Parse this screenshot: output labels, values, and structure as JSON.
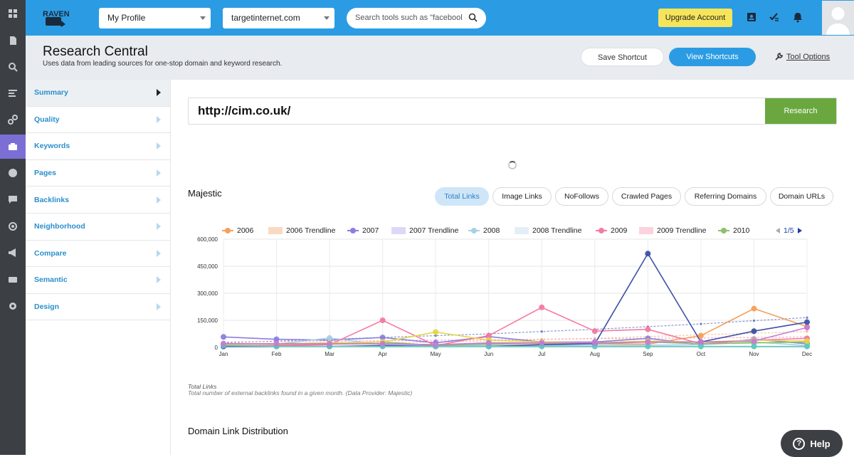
{
  "app": {
    "logo_text": "RAVEN"
  },
  "topbar": {
    "profile_select": "My Profile",
    "domain_select": "targetinternet.com",
    "search_placeholder": "Search tools such as \"facebook\"",
    "upgrade_label": "Upgrade Account"
  },
  "header": {
    "title": "Research Central",
    "subtitle": "Uses data from leading sources for one-stop domain and keyword research.",
    "save_shortcut": "Save Shortcut",
    "view_shortcuts": "View Shortcuts",
    "tool_options": "Tool Options"
  },
  "nav": {
    "items": [
      {
        "label": "Summary",
        "active": true
      },
      {
        "label": "Quality"
      },
      {
        "label": "Keywords"
      },
      {
        "label": "Pages"
      },
      {
        "label": "Backlinks"
      },
      {
        "label": "Neighborhood"
      },
      {
        "label": "Compare"
      },
      {
        "label": "Semantic"
      },
      {
        "label": "Design"
      }
    ]
  },
  "research": {
    "url": "http://cim.co.uk/",
    "button": "Research"
  },
  "majestic": {
    "title": "Majestic",
    "tabs": [
      {
        "label": "Total Links",
        "active": true
      },
      {
        "label": "Image Links"
      },
      {
        "label": "NoFollows"
      },
      {
        "label": "Crawled Pages"
      },
      {
        "label": "Referring Domains"
      },
      {
        "label": "Domain URLs"
      }
    ],
    "pager": "1/5",
    "caption_title": "Total Links",
    "caption_desc": "Total number of external backlinks found in a given month. (Data Provider: Majestic)"
  },
  "legend": [
    {
      "name": "2006",
      "type": "line",
      "color": "#f5a05a"
    },
    {
      "name": "2006 Trendline",
      "type": "box",
      "color": "#fbd9c0"
    },
    {
      "name": "2007",
      "type": "line",
      "color": "#8a7fe0"
    },
    {
      "name": "2007 Trendline",
      "type": "box",
      "color": "#dcd8f6"
    },
    {
      "name": "2008",
      "type": "line",
      "color": "#a9cfe9"
    },
    {
      "name": "2008 Trendline",
      "type": "box",
      "color": "#e3eff8"
    },
    {
      "name": "2009",
      "type": "line",
      "color": "#f57aa0"
    },
    {
      "name": "2009 Trendline",
      "type": "box",
      "color": "#fcd2de"
    },
    {
      "name": "2010",
      "type": "line",
      "color": "#8cc06a"
    }
  ],
  "chart_data": {
    "type": "line",
    "categories": [
      "Jan",
      "Feb",
      "Mar",
      "Apr",
      "May",
      "Jun",
      "Jul",
      "Aug",
      "Sep",
      "Oct",
      "Nov",
      "Dec"
    ],
    "ylim": [
      0,
      600000
    ],
    "yticks": [
      0,
      150000,
      300000,
      450000,
      600000
    ],
    "ytick_labels": [
      "0",
      "150,000",
      "300,000",
      "450,000",
      "600,000"
    ],
    "series": [
      {
        "name": "2006",
        "color": "#f5a05a",
        "values": [
          20000,
          15000,
          18000,
          20000,
          15000,
          18000,
          22000,
          20000,
          18000,
          65000,
          215000,
          115000
        ]
      },
      {
        "name": "2007",
        "color": "#8a7fe0",
        "values": [
          58000,
          45000,
          40000,
          55000,
          25000,
          60000,
          30000,
          30000,
          50000,
          15000,
          45000,
          20000
        ]
      },
      {
        "name": "2008",
        "color": "#a9cfe9",
        "values": [
          15000,
          18000,
          52000,
          15000,
          10000,
          12000,
          10000,
          10000,
          12000,
          15000,
          30000,
          10000
        ]
      },
      {
        "name": "2009",
        "color": "#f57aa0",
        "values": [
          10000,
          8000,
          15000,
          150000,
          10000,
          65000,
          222000,
          90000,
          100000,
          20000,
          40000,
          50000
        ]
      },
      {
        "name": "2010",
        "color": "#8cc06a",
        "values": [
          20000,
          20000,
          25000,
          30000,
          10000,
          20000,
          25000,
          20000,
          30000,
          20000,
          25000,
          30000
        ]
      },
      {
        "color": "#e5d645",
        "values": [
          15000,
          20000,
          25000,
          30000,
          85000,
          40000,
          30000,
          25000,
          35000,
          30000,
          40000,
          35000
        ]
      },
      {
        "color": "#3e51a8",
        "values": [
          5000,
          5000,
          5000,
          10000,
          5000,
          5000,
          15000,
          20000,
          520000,
          30000,
          90000,
          140000
        ]
      },
      {
        "color": "#5cc9c0",
        "values": [
          10000,
          5000,
          5000,
          5000,
          5000,
          5000,
          5000,
          5000,
          5000,
          5000,
          5000,
          5000
        ]
      },
      {
        "color": "#c77ad6",
        "values": [
          20000,
          20000,
          20000,
          20000,
          15000,
          25000,
          25000,
          25000,
          30000,
          30000,
          35000,
          110000
        ]
      }
    ],
    "trendlines": [
      {
        "color": "#6c7ec8",
        "values": [
          25000,
          35000,
          45000,
          55000,
          65000,
          75000,
          88000,
          100000,
          115000,
          130000,
          148000,
          165000
        ]
      },
      {
        "color": "#f5b98a",
        "values": [
          10000,
          15000,
          20000,
          25000,
          30000,
          35000,
          45000,
          50000,
          60000,
          70000,
          78000,
          88000
        ]
      },
      {
        "color": "#f2a0b8",
        "values": [
          30000,
          32000,
          35000,
          37000,
          40000,
          42000,
          45000,
          48000,
          50000,
          52000,
          55000,
          58000
        ]
      }
    ]
  }
}
